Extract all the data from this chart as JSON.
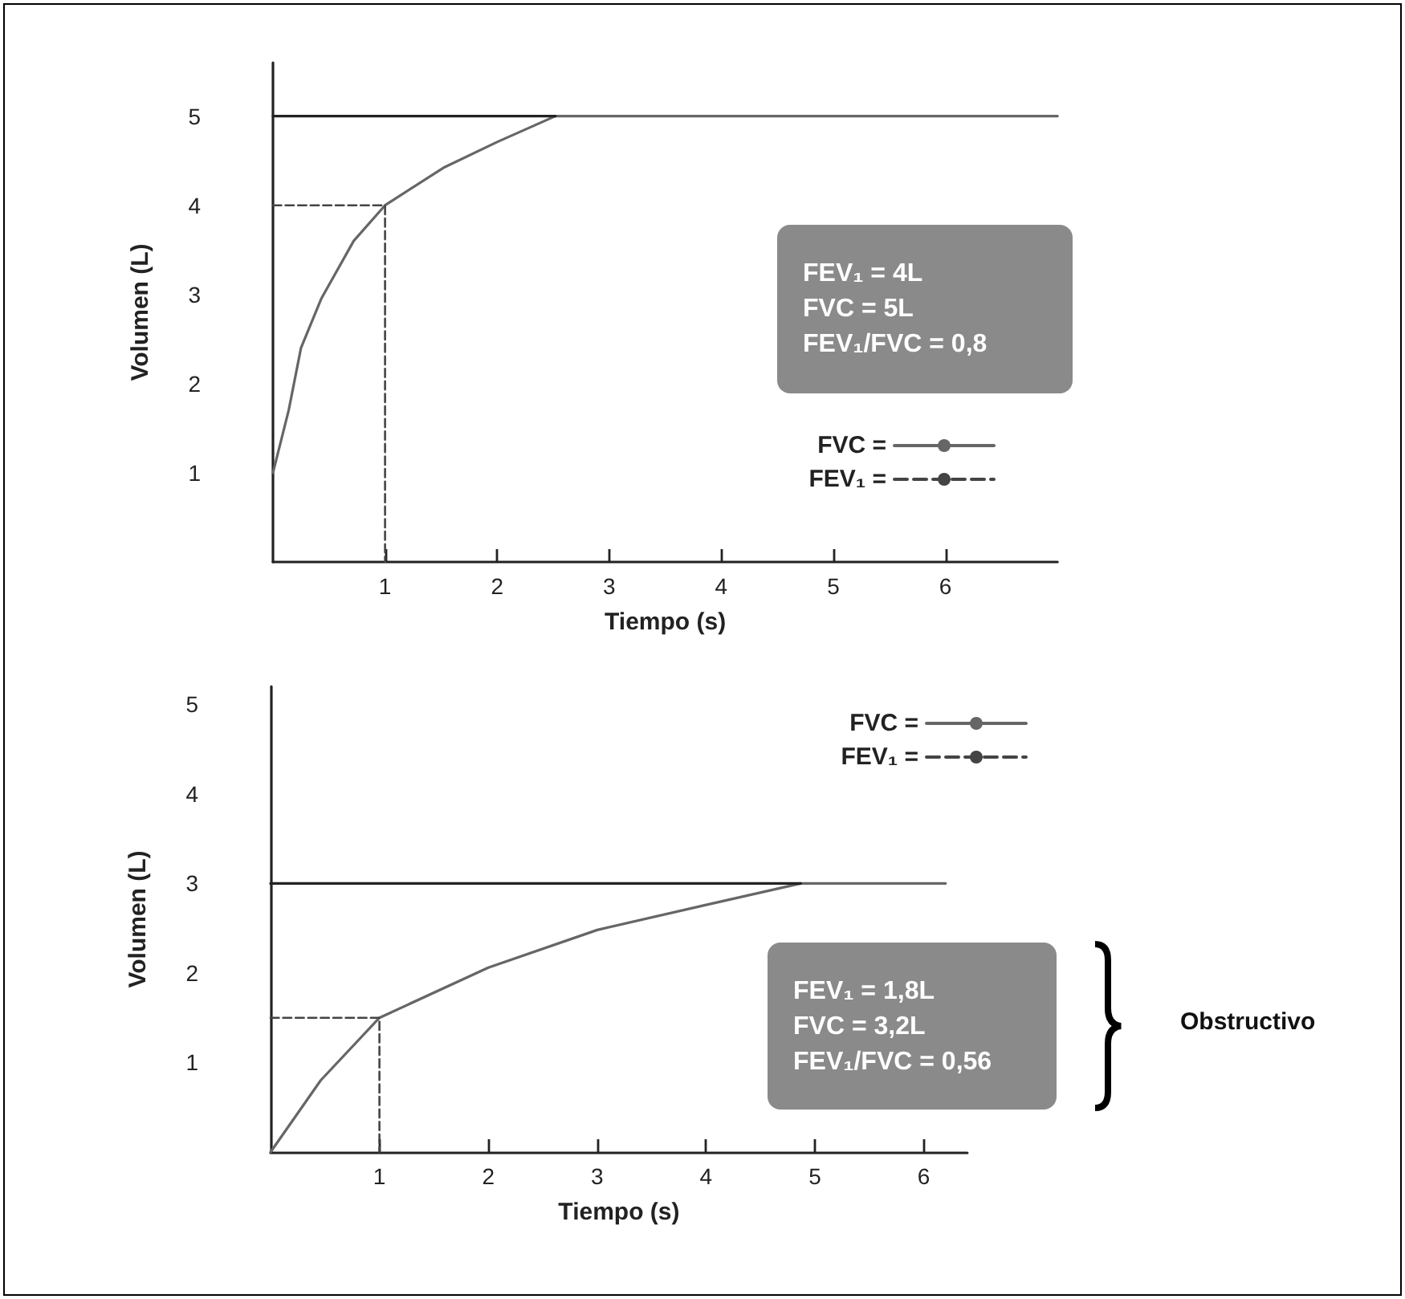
{
  "chart_data": [
    {
      "type": "line",
      "xlabel": "Tiempo (s)",
      "ylabel": "Volumen (L)",
      "xlim": [
        0,
        7
      ],
      "ylim": [
        0,
        5.6
      ],
      "xticks": [
        1,
        2,
        3,
        4,
        5,
        6
      ],
      "yticks": [
        1,
        2,
        3,
        4,
        5
      ],
      "grid": false,
      "legend": "right",
      "marker": "none",
      "annotations": [
        "FEV₁ = 4L\nFVC = 5L\nFEV₁/FVC = 0,8"
      ],
      "series": [
        {
          "name": "FVC =",
          "color": "#666666",
          "line_style": "solid",
          "x": [
            0,
            0.14,
            0.25,
            0.43,
            0.72,
            1.0,
            1.52,
            2.0,
            2.52,
            7.0
          ],
          "values": [
            1,
            1.7,
            2.4,
            2.95,
            3.6,
            4.0,
            4.42,
            4.71,
            5.0,
            5.0
          ]
        },
        {
          "name": "FEV₁ =",
          "color": "#444444",
          "line_style": "dashed",
          "x": [
            0,
            1,
            1
          ],
          "values": [
            4,
            4,
            0
          ]
        },
        {
          "color": "#222222",
          "line_style": "solid",
          "x": [
            0,
            2.52
          ],
          "values": [
            5,
            5
          ]
        }
      ]
    },
    {
      "type": "line",
      "xlabel": "Tiempo (s)",
      "ylabel": "Volumen (L)",
      "xlim": [
        0,
        6.4
      ],
      "ylim": [
        0,
        5.2
      ],
      "xticks": [
        1,
        2,
        3,
        4,
        5,
        6
      ],
      "yticks": [
        1,
        2,
        3,
        4,
        5
      ],
      "grid": false,
      "legend": "top right",
      "marker": "none",
      "annotations": [
        "FEV₁ = 1,8L\nFVC = 3,2L\nFEV₁/FVC = 0,56",
        "Obstructivo"
      ],
      "series": [
        {
          "name": "FVC =",
          "color": "#666666",
          "line_style": "solid",
          "x": [
            0,
            0.46,
            1.0,
            2.0,
            3.0,
            4.0,
            4.87,
            6.2
          ],
          "values": [
            0,
            0.8,
            1.5,
            2.06,
            2.48,
            2.76,
            3.0,
            3.0
          ]
        },
        {
          "name": "FEV₁ =",
          "color": "#444444",
          "line_style": "dashed",
          "x": [
            0,
            1,
            1
          ],
          "values": [
            1.5,
            1.5,
            0
          ]
        },
        {
          "color": "#222222",
          "line_style": "solid",
          "x": [
            0,
            4.87
          ],
          "values": [
            3,
            3
          ]
        }
      ]
    }
  ]
}
